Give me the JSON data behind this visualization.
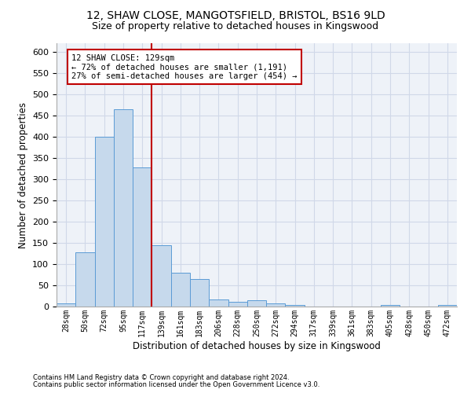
{
  "title1": "12, SHAW CLOSE, MANGOTSFIELD, BRISTOL, BS16 9LD",
  "title2": "Size of property relative to detached houses in Kingswood",
  "xlabel": "Distribution of detached houses by size in Kingswood",
  "ylabel": "Number of detached properties",
  "footnote1": "Contains HM Land Registry data © Crown copyright and database right 2024.",
  "footnote2": "Contains public sector information licensed under the Open Government Licence v3.0.",
  "bar_labels": [
    "28sqm",
    "50sqm",
    "72sqm",
    "95sqm",
    "117sqm",
    "139sqm",
    "161sqm",
    "183sqm",
    "206sqm",
    "228sqm",
    "250sqm",
    "272sqm",
    "294sqm",
    "317sqm",
    "339sqm",
    "361sqm",
    "383sqm",
    "405sqm",
    "428sqm",
    "450sqm",
    "472sqm"
  ],
  "bar_values": [
    8,
    128,
    400,
    465,
    328,
    145,
    79,
    64,
    17,
    12,
    14,
    8,
    3,
    0,
    0,
    0,
    0,
    3,
    0,
    0,
    3
  ],
  "bar_color": "#c6d9ec",
  "bar_edge_color": "#5b9bd5",
  "vline_color": "#c00000",
  "annotation_title": "12 SHAW CLOSE: 129sqm",
  "annotation_line1": "← 72% of detached houses are smaller (1,191)",
  "annotation_line2": "27% of semi-detached houses are larger (454) →",
  "annotation_box_color": "#c00000",
  "ylim": [
    0,
    620
  ],
  "yticks": [
    0,
    50,
    100,
    150,
    200,
    250,
    300,
    350,
    400,
    450,
    500,
    550,
    600
  ],
  "grid_color": "#d0d8e8",
  "background_color": "#eef2f8",
  "title1_fontsize": 10,
  "title2_fontsize": 9
}
